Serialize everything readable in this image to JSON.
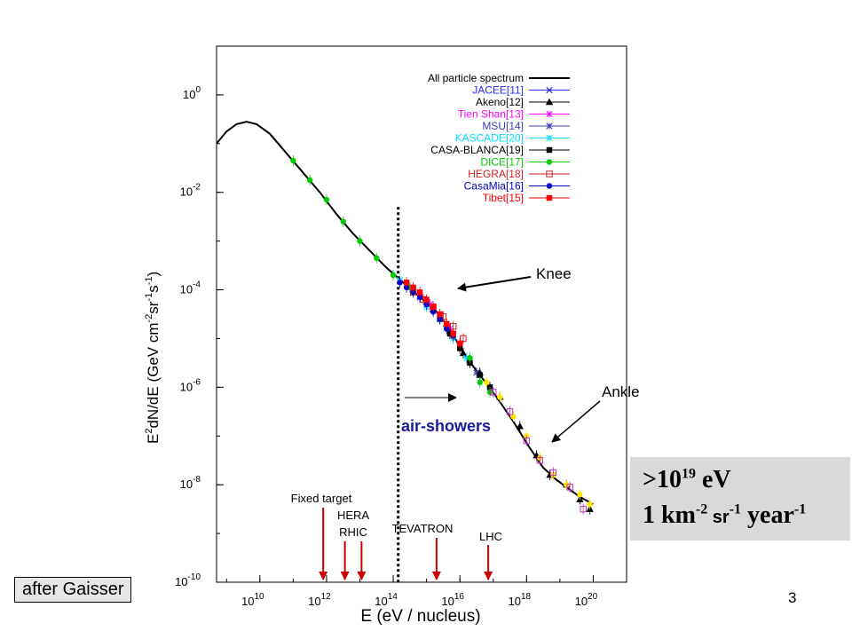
{
  "chart_data": {
    "type": "scatter",
    "title": "",
    "xlabel": "E     (eV / nucleus)",
    "ylabel_parts": [
      "E",
      "2",
      "dN/dE     (GeV cm",
      "-2",
      "sr",
      "-1",
      "s",
      "-1",
      ")"
    ],
    "x_log10_range": [
      8.7,
      21.0
    ],
    "y_log10_range": [
      -10,
      1.0
    ],
    "x_ticks": [
      {
        "base": "10",
        "exp": "10",
        "v": 10
      },
      {
        "base": "10",
        "exp": "12",
        "v": 12
      },
      {
        "base": "10",
        "exp": "14",
        "v": 14
      },
      {
        "base": "10",
        "exp": "16",
        "v": 16
      },
      {
        "base": "10",
        "exp": "18",
        "v": 18
      },
      {
        "base": "10",
        "exp": "20",
        "v": 20
      }
    ],
    "y_ticks": [
      {
        "base": "10",
        "exp": "0",
        "v": 0
      },
      {
        "base": "10",
        "exp": "-2",
        "v": -2
      },
      {
        "base": "10",
        "exp": "-4",
        "v": -4
      },
      {
        "base": "10",
        "exp": "-6",
        "v": -6
      },
      {
        "base": "10",
        "exp": "-8",
        "v": -8
      },
      {
        "base": "10",
        "exp": "-10",
        "v": -10
      }
    ],
    "all_particle_spectrum": [
      [
        8.7,
        -1.0
      ],
      [
        9.0,
        -0.75
      ],
      [
        9.3,
        -0.6
      ],
      [
        9.6,
        -0.55
      ],
      [
        9.9,
        -0.6
      ],
      [
        10.3,
        -0.8
      ],
      [
        10.8,
        -1.2
      ],
      [
        11.3,
        -1.6
      ],
      [
        11.8,
        -2.0
      ],
      [
        12.3,
        -2.45
      ],
      [
        12.8,
        -2.85
      ],
      [
        13.3,
        -3.2
      ],
      [
        13.8,
        -3.55
      ],
      [
        14.3,
        -3.85
      ],
      [
        14.8,
        -4.15
      ],
      [
        15.3,
        -4.45
      ],
      [
        15.7,
        -4.8
      ],
      [
        16.1,
        -5.3
      ],
      [
        16.6,
        -5.75
      ],
      [
        17.1,
        -6.2
      ],
      [
        17.6,
        -6.7
      ],
      [
        18.1,
        -7.25
      ],
      [
        18.5,
        -7.65
      ],
      [
        18.9,
        -7.9
      ],
      [
        19.3,
        -8.1
      ],
      [
        19.6,
        -8.25
      ],
      [
        20.0,
        -8.4
      ]
    ],
    "series": [
      {
        "name": "JACEE[11]",
        "color": "#2a2aff",
        "marker": "x",
        "points": [
          [
            14.6,
            -4.0
          ],
          [
            14.8,
            -4.15
          ],
          [
            15.0,
            -4.3
          ],
          [
            15.2,
            -4.4
          ],
          [
            15.4,
            -4.55
          ],
          [
            15.6,
            -4.7
          ]
        ]
      },
      {
        "name": "Akeno[12]",
        "color": "#000000",
        "marker": "triangle",
        "points": [
          [
            15.2,
            -4.4
          ],
          [
            15.6,
            -4.7
          ],
          [
            16.1,
            -5.3
          ],
          [
            16.6,
            -5.7
          ],
          [
            17.2,
            -6.2
          ],
          [
            17.8,
            -6.8
          ],
          [
            18.3,
            -7.4
          ],
          [
            18.7,
            -7.8
          ],
          [
            19.2,
            -8.0
          ],
          [
            19.6,
            -8.3
          ],
          [
            19.9,
            -8.5
          ]
        ]
      },
      {
        "name": "Tien Shan[13]",
        "color": "#ff00ff",
        "marker": "star",
        "points": [
          [
            14.5,
            -3.95
          ],
          [
            14.8,
            -4.12
          ],
          [
            15.1,
            -4.3
          ],
          [
            15.4,
            -4.5
          ],
          [
            15.7,
            -4.8
          ],
          [
            16.0,
            -5.1
          ],
          [
            16.3,
            -5.45
          ]
        ]
      },
      {
        "name": "MSU[14]",
        "color": "#3c3cb4",
        "marker": "star",
        "points": [
          [
            14.6,
            -4.0
          ],
          [
            15.0,
            -4.3
          ],
          [
            15.4,
            -4.55
          ],
          [
            15.8,
            -4.9
          ],
          [
            16.2,
            -5.4
          ],
          [
            16.5,
            -5.7
          ]
        ]
      },
      {
        "name": "KASCADE[20]",
        "color": "#00e0ff",
        "marker": "star",
        "points": [
          [
            14.2,
            -3.8
          ],
          [
            14.6,
            -4.0
          ],
          [
            15.0,
            -4.35
          ],
          [
            15.4,
            -4.6
          ],
          [
            15.8,
            -5.0
          ],
          [
            16.2,
            -5.4
          ],
          [
            16.6,
            -5.75
          ],
          [
            16.9,
            -6.0
          ]
        ]
      },
      {
        "name": "CASA-BLANCA[19]",
        "color": "#000000",
        "marker": "square",
        "points": [
          [
            15.4,
            -4.6
          ],
          [
            15.7,
            -4.9
          ],
          [
            16.0,
            -5.2
          ],
          [
            16.3,
            -5.5
          ],
          [
            16.6,
            -5.75
          ],
          [
            16.9,
            -6.0
          ]
        ]
      },
      {
        "name": "DICE[17]",
        "color": "#00cc00",
        "marker": "circle",
        "points": [
          [
            11.0,
            -1.35
          ],
          [
            11.5,
            -1.75
          ],
          [
            12.0,
            -2.15
          ],
          [
            12.5,
            -2.6
          ],
          [
            13.0,
            -3.0
          ],
          [
            13.5,
            -3.35
          ],
          [
            14.0,
            -3.7
          ],
          [
            14.5,
            -3.95
          ],
          [
            16.3,
            -5.4
          ],
          [
            16.6,
            -5.9
          ],
          [
            16.9,
            -6.1
          ]
        ]
      },
      {
        "name": "HEGRA[18]",
        "color": "#cc2222",
        "marker": "opensquare",
        "points": [
          [
            14.6,
            -4.05
          ],
          [
            14.9,
            -4.2
          ],
          [
            15.2,
            -4.35
          ],
          [
            15.5,
            -4.55
          ],
          [
            15.8,
            -4.75
          ],
          [
            16.1,
            -5.0
          ]
        ]
      },
      {
        "name": "CasaMia[16]",
        "color": "#0000cc",
        "marker": "circle",
        "points": [
          [
            14.2,
            -3.85
          ],
          [
            14.4,
            -3.95
          ],
          [
            14.6,
            -4.05
          ],
          [
            14.8,
            -4.15
          ],
          [
            15.0,
            -4.3
          ],
          [
            15.2,
            -4.45
          ],
          [
            15.4,
            -4.6
          ],
          [
            15.6,
            -4.8
          ],
          [
            15.8,
            -4.95
          ]
        ]
      },
      {
        "name": "Tibet[15]",
        "color": "#ff0000",
        "marker": "square",
        "points": [
          [
            14.4,
            -3.85
          ],
          [
            14.6,
            -3.95
          ],
          [
            14.8,
            -4.05
          ],
          [
            15.0,
            -4.2
          ],
          [
            15.2,
            -4.35
          ],
          [
            15.4,
            -4.5
          ],
          [
            15.6,
            -4.7
          ],
          [
            15.8,
            -4.9
          ],
          [
            16.0,
            -5.1
          ]
        ]
      },
      {
        "name": "",
        "color": "#ffe600",
        "marker": "circle",
        "points": [
          [
            16.8,
            -5.9
          ],
          [
            17.2,
            -6.2
          ],
          [
            17.6,
            -6.6
          ],
          [
            18.0,
            -7.0
          ],
          [
            18.4,
            -7.45
          ],
          [
            18.8,
            -7.8
          ],
          [
            19.2,
            -8.0
          ],
          [
            19.6,
            -8.2
          ],
          [
            19.9,
            -8.4
          ]
        ]
      },
      {
        "name": "",
        "color": "#bb33bb",
        "marker": "opensquare",
        "points": [
          [
            17.0,
            -6.1
          ],
          [
            17.5,
            -6.5
          ],
          [
            18.0,
            -7.1
          ],
          [
            18.4,
            -7.5
          ],
          [
            18.8,
            -7.75
          ],
          [
            19.3,
            -8.05
          ],
          [
            19.7,
            -8.5
          ]
        ]
      }
    ],
    "legend_placement": "top-right",
    "vertical_marker_log10E": 14.15,
    "collider_arrows": [
      {
        "label": "Fixed target",
        "log10E": 11.9
      },
      {
        "label": "HERA",
        "log10E": 12.55
      },
      {
        "label": "RHIC",
        "log10E": 13.05
      },
      {
        "label": "TEVATRON",
        "log10E": 15.3
      },
      {
        "label": "LHC",
        "log10E": 16.85
      }
    ],
    "annotations": {
      "knee": "Knee",
      "ankle": "Ankle",
      "air_showers": "air-showers"
    }
  },
  "caption": "after Gaisser",
  "page_number": "3",
  "rate_box": {
    "line1_pre": ">10",
    "line1_sup": "19",
    "line1_post": " eV",
    "line2_a": "1 km",
    "line2_a_sup": "-2",
    "line2_b": " sr",
    "line2_b_sup": "-1",
    "line2_c": " year",
    "line2_c_sup": "-1"
  }
}
